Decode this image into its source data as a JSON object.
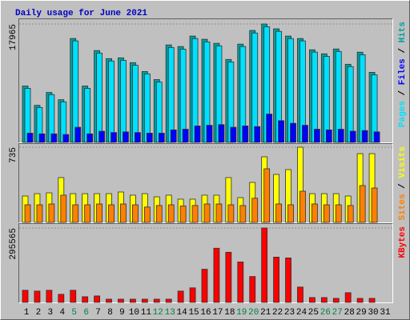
{
  "title": "Daily usage for June 2021",
  "legend_separator": " / ",
  "categories": [
    "1",
    "2",
    "3",
    "4",
    "5",
    "6",
    "7",
    "8",
    "9",
    "10",
    "11",
    "12",
    "13",
    "14",
    "15",
    "16",
    "17",
    "18",
    "19",
    "20",
    "21",
    "22",
    "23",
    "24",
    "25",
    "26",
    "27",
    "28",
    "29",
    "30",
    "31"
  ],
  "category_colors": [
    "#000000",
    "#000000",
    "#000000",
    "#000000",
    "#008040",
    "#008040",
    "#000000",
    "#000000",
    "#000000",
    "#000000",
    "#000000",
    "#008040",
    "#008040",
    "#000000",
    "#000000",
    "#000000",
    "#000000",
    "#000000",
    "#008040",
    "#008040",
    "#000000",
    "#000000",
    "#000000",
    "#000000",
    "#000000",
    "#008040",
    "#008040",
    "#000000",
    "#000000",
    "#000000",
    "#000000"
  ],
  "chart_data": [
    {
      "type": "bar",
      "ylim": [
        0,
        17965
      ],
      "yticks": [
        17965
      ],
      "series": [
        {
          "name": "Pages",
          "color": "#00e0ff",
          "values": [
            8200,
            5300,
            7250,
            6150,
            15400,
            8200,
            13550,
            12350,
            12450,
            11700,
            10400,
            9150,
            14400,
            14150,
            15750,
            15250,
            14650,
            12200,
            14550,
            16600,
            17550,
            16850,
            15750,
            15400,
            13700,
            13050,
            13800,
            11500,
            13300,
            10250,
            0
          ]
        },
        {
          "name": "Files",
          "color": "#0000ff",
          "values": [
            1400,
            1300,
            1300,
            1200,
            2300,
            1300,
            1700,
            1500,
            1600,
            1500,
            1400,
            1400,
            1900,
            2000,
            2500,
            2600,
            2700,
            2300,
            2500,
            2400,
            4300,
            3300,
            2900,
            2600,
            2000,
            1900,
            2000,
            1700,
            1800,
            1600,
            0
          ]
        },
        {
          "name": "Hits",
          "color": "#00a0a0",
          "values": [
            8555,
            5622,
            7577,
            6477,
            15765,
            8555,
            13932,
            12710,
            12832,
            12099,
            10755,
            9532,
            14788,
            14543,
            16132,
            15643,
            15032,
            12588,
            14910,
            16988,
            17965,
            17232,
            16132,
            15765,
            14054,
            13443,
            14176,
            11855,
            13688,
            10633,
            0
          ]
        }
      ]
    },
    {
      "type": "bar",
      "ylim": [
        0,
        735
      ],
      "yticks": [
        735
      ],
      "series": [
        {
          "name": "Sites",
          "color": "#ff8000",
          "values": [
            172,
            172,
            180,
            266,
            172,
            172,
            180,
            172,
            180,
            172,
            150,
            165,
            172,
            160,
            165,
            180,
            180,
            172,
            165,
            236,
            524,
            180,
            172,
            305,
            180,
            172,
            172,
            165,
            360,
            336,
            0
          ]
        },
        {
          "name": "Visits",
          "color": "#ffff00",
          "values": [
            258,
            281,
            289,
            438,
            281,
            281,
            281,
            281,
            297,
            266,
            281,
            250,
            266,
            227,
            227,
            266,
            266,
            438,
            242,
            391,
            641,
            469,
            516,
            735,
            281,
            281,
            281,
            258,
            672,
            672,
            0
          ]
        }
      ]
    },
    {
      "type": "bar",
      "ylim": [
        0,
        295565
      ],
      "yticks": [
        295565
      ],
      "series": [
        {
          "name": "KBytes",
          "color": "#ff0000",
          "values": [
            48190,
            44980,
            48190,
            32125,
            48190,
            22490,
            25700,
            12850,
            12850,
            12850,
            12850,
            12850,
            12850,
            44980,
            57830,
            131720,
            215250,
            199190,
            160635,
            102800,
            295565,
            179910,
            176700,
            61040,
            19280,
            19280,
            16000,
            38550,
            16000,
            16000,
            0
          ]
        }
      ]
    }
  ]
}
